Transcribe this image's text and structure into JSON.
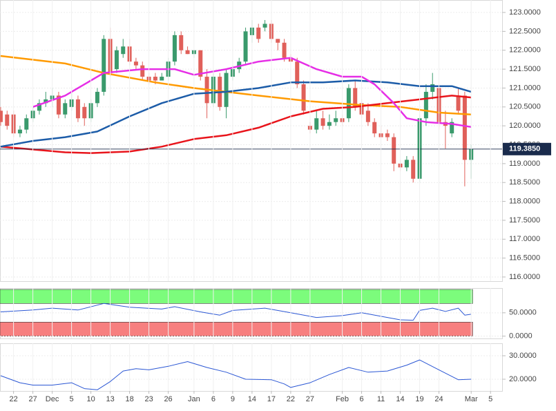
{
  "chart_data": [
    {
      "type": "candlestick",
      "up_color": "#3a9a6c",
      "down_color": "#e0605a",
      "x": [
        0,
        1,
        2,
        3,
        4,
        5,
        6,
        7,
        8,
        9,
        10,
        11,
        12,
        13,
        14,
        15,
        16,
        17,
        18,
        19,
        20,
        21,
        22,
        23,
        24,
        25,
        26,
        27,
        28,
        29,
        30,
        31,
        32,
        33,
        34,
        35,
        36,
        37,
        38,
        39,
        40,
        41,
        42,
        43,
        44,
        45,
        46,
        47,
        48,
        49,
        50,
        51,
        52,
        53,
        54,
        55,
        56,
        57,
        58,
        59,
        60,
        61,
        62,
        63,
        64,
        65,
        66,
        67,
        68,
        69,
        70,
        71,
        72,
        73
      ],
      "open": [
        120.4,
        120.3,
        120.3,
        119.8,
        119.9,
        120.2,
        120.4,
        120.6,
        120.7,
        120.8,
        120.3,
        120.5,
        120.7,
        120.5,
        120.2,
        120.6,
        120.9,
        122.3,
        121.5,
        121.9,
        122.1,
        121.7,
        121.6,
        121.3,
        121.3,
        121.2,
        121.3,
        121.7,
        122.4,
        122.0,
        121.9,
        122.0,
        121.3,
        120.6,
        121.3,
        120.5,
        121.3,
        121.5,
        121.7,
        122.4,
        122.6,
        122.6,
        122.7,
        122.3,
        122.2,
        121.8,
        121.7,
        121.1,
        120.0,
        119.9,
        120.2,
        120.0,
        120.1,
        120.2,
        120.2,
        121.0,
        120.6,
        120.4,
        120.1,
        119.8,
        119.8,
        119.7,
        119.0,
        118.9,
        119.1,
        118.6,
        120.2,
        120.9,
        121.0,
        120.1,
        119.8,
        120.8,
        120.8,
        119.1
      ],
      "high": [
        120.5,
        120.4,
        120.4,
        120.0,
        120.3,
        120.5,
        120.7,
        120.9,
        121.0,
        120.9,
        120.7,
        120.9,
        120.8,
        120.6,
        120.7,
        121.0,
        122.4,
        122.6,
        122.1,
        122.3,
        122.3,
        121.8,
        121.7,
        121.4,
        121.4,
        121.4,
        121.8,
        122.5,
        122.5,
        122.1,
        122.0,
        122.0,
        121.5,
        121.4,
        121.4,
        121.5,
        121.6,
        121.8,
        122.6,
        122.8,
        122.7,
        122.8,
        122.8,
        122.3,
        122.3,
        121.9,
        121.8,
        121.2,
        120.1,
        120.4,
        120.4,
        120.3,
        120.4,
        120.3,
        121.1,
        121.2,
        120.7,
        120.6,
        120.2,
        120.0,
        119.9,
        119.8,
        119.1,
        119.2,
        119.2,
        120.3,
        121.1,
        121.4,
        121.1,
        120.4,
        120.2,
        121.0,
        120.9,
        119.5
      ],
      "low": [
        120.0,
        119.9,
        119.7,
        119.7,
        119.8,
        120.1,
        120.3,
        120.5,
        120.5,
        120.2,
        120.2,
        120.4,
        120.1,
        120.0,
        120.1,
        120.5,
        120.8,
        121.3,
        121.4,
        121.8,
        121.6,
        121.5,
        121.2,
        121.1,
        121.1,
        121.2,
        121.2,
        121.6,
        121.9,
        121.9,
        121.8,
        121.2,
        120.2,
        120.5,
        120.4,
        120.2,
        121.2,
        121.4,
        121.6,
        122.2,
        122.2,
        122.5,
        122.2,
        122.0,
        121.7,
        121.7,
        121.0,
        120.3,
        119.8,
        119.8,
        119.9,
        119.9,
        120.0,
        120.0,
        120.1,
        120.4,
        120.2,
        120.0,
        119.7,
        119.7,
        119.6,
        118.8,
        118.8,
        118.8,
        118.5,
        118.5,
        120.0,
        120.7,
        119.9,
        119.4,
        119.7,
        120.3,
        118.4,
        118.6
      ],
      "close": [
        120.1,
        120.0,
        119.8,
        119.9,
        120.2,
        120.4,
        120.6,
        120.7,
        120.8,
        120.3,
        120.6,
        120.7,
        120.2,
        120.2,
        120.6,
        120.9,
        122.3,
        121.4,
        122.0,
        122.1,
        121.7,
        121.6,
        121.3,
        121.2,
        121.2,
        121.3,
        121.7,
        122.4,
        122.0,
        121.9,
        122.0,
        121.3,
        120.6,
        121.3,
        120.5,
        121.4,
        121.5,
        121.7,
        122.5,
        122.6,
        122.3,
        122.7,
        122.3,
        122.2,
        121.8,
        121.7,
        121.1,
        120.4,
        119.9,
        120.2,
        120.0,
        120.1,
        120.2,
        120.1,
        121.0,
        120.5,
        120.3,
        120.1,
        119.8,
        119.7,
        119.7,
        119.0,
        118.9,
        119.1,
        118.6,
        120.2,
        120.9,
        121.1,
        120.1,
        120.0,
        120.1,
        120.4,
        119.1,
        119.385
      ],
      "series": [
        {
          "color": "#ff9a00",
          "x": [
            0,
            10,
            16,
            24,
            30,
            40,
            48,
            56,
            62,
            68,
            73
          ],
          "values": [
            121.85,
            121.65,
            121.4,
            121.15,
            121.0,
            120.8,
            120.65,
            120.55,
            120.5,
            120.35,
            120.3
          ]
        },
        {
          "color": "#e8141b",
          "x": [
            0,
            10,
            14,
            20,
            25,
            30,
            35,
            40,
            45,
            50,
            55,
            60,
            65,
            70,
            73
          ],
          "values": [
            119.45,
            119.3,
            119.28,
            119.32,
            119.45,
            119.65,
            119.75,
            119.95,
            120.25,
            120.45,
            120.5,
            120.6,
            120.7,
            120.8,
            120.75
          ]
        },
        {
          "color": "#1c5ca8",
          "x": [
            0,
            5,
            10,
            15,
            20,
            25,
            30,
            35,
            40,
            45,
            50,
            55,
            60,
            65,
            70,
            73
          ],
          "values": [
            119.45,
            119.6,
            119.7,
            119.85,
            120.25,
            120.6,
            120.85,
            120.9,
            121.0,
            121.15,
            121.15,
            121.2,
            121.15,
            121.05,
            121.05,
            120.9
          ]
        },
        {
          "color": "#e62ee6",
          "x": [
            5,
            10,
            16,
            22,
            27,
            30,
            35,
            40,
            45,
            49,
            53,
            56,
            58,
            61,
            63,
            66,
            70,
            73
          ],
          "values": [
            120.5,
            120.8,
            121.4,
            121.5,
            121.5,
            121.35,
            121.5,
            121.7,
            121.8,
            121.5,
            121.3,
            121.3,
            121.1,
            120.6,
            120.2,
            120.1,
            120.05,
            119.97
          ]
        }
      ],
      "last_value": 119.385,
      "last_label": "119.3850",
      "xlim": [
        -0.1,
        77.8
      ],
      "ylim": [
        115.89,
        123.33
      ],
      "yticks": [
        {
          "value": 116,
          "label": "116.0000"
        },
        {
          "value": 116.5,
          "label": "116.5000"
        },
        {
          "value": 117,
          "label": "117.0000"
        },
        {
          "value": 117.5,
          "label": "117.5000"
        },
        {
          "value": 118,
          "label": "118.0000"
        },
        {
          "value": 118.5,
          "label": "118.5000"
        },
        {
          "value": 119,
          "label": "119.0000"
        },
        {
          "value": 119.5,
          "label": "119.5000"
        },
        {
          "value": 120,
          "label": "120.0000"
        },
        {
          "value": 120.5,
          "label": "120.5000"
        },
        {
          "value": 121,
          "label": "121.0000"
        },
        {
          "value": 121.5,
          "label": "121.5000"
        },
        {
          "value": 122,
          "label": "122.0000"
        },
        {
          "value": 122.5,
          "label": "122.5000"
        },
        {
          "value": 123,
          "label": "123.0000"
        }
      ],
      "grid": true
    },
    {
      "type": "line",
      "x": [
        0,
        5,
        8,
        12,
        16,
        20,
        25,
        27,
        31,
        34,
        36,
        41,
        45,
        49,
        53,
        56,
        60,
        62,
        64,
        65,
        67,
        69,
        71,
        72,
        73
      ],
      "series": [
        {
          "color": "#2a56d4",
          "x": [
            0,
            5,
            8,
            12,
            16,
            20,
            25,
            27,
            31,
            34,
            36,
            41,
            45,
            49,
            53,
            56,
            60,
            62,
            64,
            65,
            67,
            69,
            71,
            72,
            73
          ],
          "values": [
            52,
            56,
            60,
            56,
            70,
            62,
            58,
            63,
            52,
            45,
            55,
            60,
            50,
            40,
            44,
            50,
            40,
            35,
            34,
            55,
            60,
            53,
            60,
            45,
            47
          ]
        }
      ],
      "bands": [
        {
          "range": [
            70,
            100
          ],
          "color": "#7cfc7c"
        },
        {
          "range": [
            0,
            30
          ],
          "color": "#f77f7f"
        }
      ],
      "xlim": [
        -0.1,
        77.8
      ],
      "ylim": [
        -5,
        103
      ],
      "yticks": [
        {
          "value": 0,
          "label": "0.0000"
        },
        {
          "value": 50,
          "label": "50.0000"
        }
      ],
      "grid": true
    },
    {
      "type": "line",
      "series": [
        {
          "color": "#2a56d4",
          "x": [
            0,
            3,
            5,
            8,
            11,
            13,
            15,
            17,
            19,
            21,
            23,
            26,
            29,
            32,
            35,
            38,
            42,
            44,
            45,
            48,
            51,
            54,
            57,
            60,
            63,
            65,
            68,
            71,
            73
          ],
          "values": [
            21.5,
            18.5,
            17.5,
            17.5,
            18.5,
            16,
            15.5,
            19,
            23.5,
            24.5,
            24,
            25.5,
            27.5,
            25,
            23,
            20,
            19.8,
            18,
            16.5,
            18.5,
            22,
            25,
            23,
            23.5,
            26,
            28.2,
            24,
            19.8,
            20
          ]
        }
      ],
      "xlim": [
        -0.1,
        77.8
      ],
      "ylim": [
        15,
        35.3
      ],
      "yticks": [
        {
          "value": 20,
          "label": "20.0000"
        },
        {
          "value": 30,
          "label": "30.0000"
        }
      ],
      "xticks": [
        {
          "value": 2,
          "label": "22"
        },
        {
          "value": 5,
          "label": "27"
        },
        {
          "value": 8,
          "label": "Dec"
        },
        {
          "value": 11,
          "label": "5"
        },
        {
          "value": 14,
          "label": "10"
        },
        {
          "value": 17,
          "label": "13"
        },
        {
          "value": 20,
          "label": "18"
        },
        {
          "value": 23,
          "label": "23"
        },
        {
          "value": 26,
          "label": "26"
        },
        {
          "value": 30,
          "label": "Jan"
        },
        {
          "value": 33,
          "label": "6"
        },
        {
          "value": 36,
          "label": "9"
        },
        {
          "value": 39,
          "label": "14"
        },
        {
          "value": 42,
          "label": "17"
        },
        {
          "value": 45,
          "label": "22"
        },
        {
          "value": 48,
          "label": "27"
        },
        {
          "value": 53,
          "label": "Feb"
        },
        {
          "value": 56,
          "label": "6"
        },
        {
          "value": 59,
          "label": "11"
        },
        {
          "value": 62,
          "label": "14"
        },
        {
          "value": 65,
          "label": "19"
        },
        {
          "value": 68,
          "label": "24"
        },
        {
          "value": 73,
          "label": "Mar"
        },
        {
          "value": 76,
          "label": "5"
        }
      ],
      "grid": true
    }
  ]
}
